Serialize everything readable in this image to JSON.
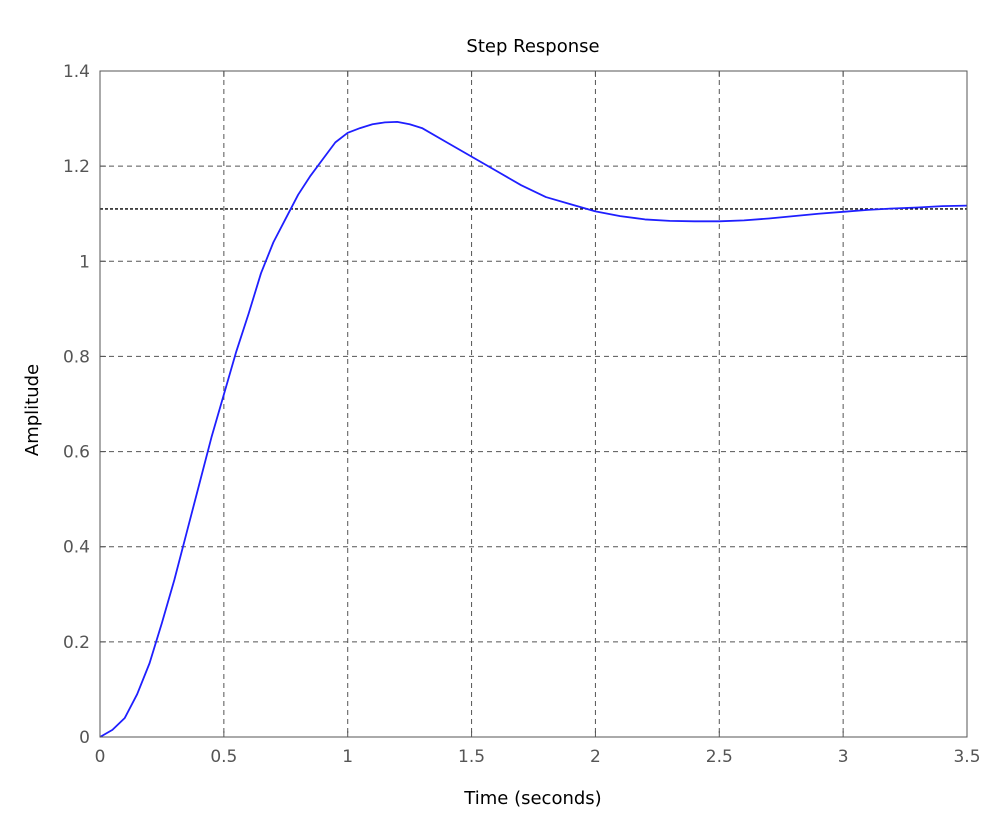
{
  "chart_data": {
    "type": "line",
    "title": "Step Response",
    "xlabel": "Time (seconds)",
    "ylabel": "Amplitude",
    "xlim": [
      0,
      3.5
    ],
    "ylim": [
      0,
      1.4
    ],
    "grid": true,
    "x_ticks": [
      0,
      0.5,
      1,
      1.5,
      2,
      2.5,
      3,
      3.5
    ],
    "x_tick_labels": [
      "0",
      "0.5",
      "1",
      "1.5",
      "2",
      "2.5",
      "3",
      "3.5"
    ],
    "y_ticks": [
      0,
      0.2,
      0.4,
      0.6,
      0.8,
      1.0,
      1.2,
      1.4
    ],
    "y_tick_labels": [
      "0",
      "0.2",
      "0.4",
      "0.6",
      "0.8",
      "1",
      "1.2",
      "1.4"
    ],
    "series": [
      {
        "style": "solid",
        "color": "#1f1fff",
        "x": [
          0,
          0.05,
          0.1,
          0.15,
          0.2,
          0.25,
          0.3,
          0.35,
          0.4,
          0.45,
          0.5,
          0.55,
          0.6,
          0.65,
          0.7,
          0.75,
          0.8,
          0.85,
          0.9,
          0.95,
          1.0,
          1.05,
          1.1,
          1.15,
          1.2,
          1.25,
          1.3,
          1.4,
          1.5,
          1.6,
          1.7,
          1.8,
          1.9,
          2.0,
          2.1,
          2.2,
          2.3,
          2.4,
          2.5,
          2.6,
          2.7,
          2.8,
          2.9,
          3.0,
          3.1,
          3.2,
          3.3,
          3.4,
          3.5
        ],
        "y": [
          0,
          0.015,
          0.04,
          0.09,
          0.155,
          0.24,
          0.33,
          0.43,
          0.53,
          0.63,
          0.72,
          0.81,
          0.89,
          0.975,
          1.04,
          1.09,
          1.14,
          1.18,
          1.215,
          1.25,
          1.27,
          1.28,
          1.288,
          1.292,
          1.293,
          1.288,
          1.28,
          1.25,
          1.22,
          1.19,
          1.16,
          1.135,
          1.12,
          1.105,
          1.095,
          1.088,
          1.085,
          1.084,
          1.084,
          1.086,
          1.09,
          1.095,
          1.1,
          1.104,
          1.108,
          1.111,
          1.113,
          1.116,
          1.117
        ]
      },
      {
        "style": "dashed",
        "color": "#000000",
        "x": [
          0,
          3.5
        ],
        "y": [
          1.11,
          1.11
        ]
      }
    ]
  }
}
